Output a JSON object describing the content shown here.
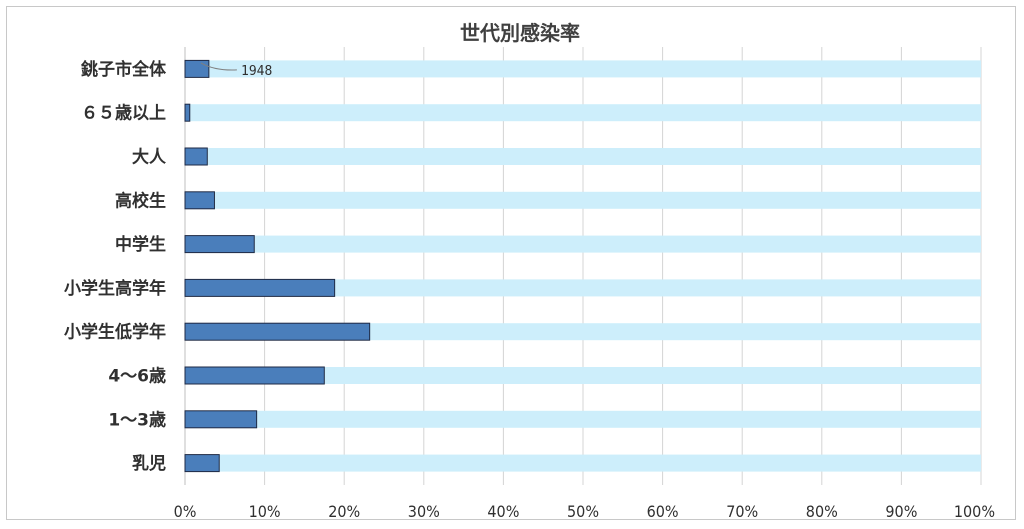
{
  "chart_data": {
    "type": "bar",
    "orientation": "horizontal",
    "title": "世代別感染率",
    "xlabel": "",
    "ylabel": "",
    "xlim": [
      0,
      100
    ],
    "ticks": [
      "0%",
      "10%",
      "20%",
      "30%",
      "40%",
      "50%",
      "60%",
      "70%",
      "80%",
      "90%",
      "100%"
    ],
    "categories": [
      "銚子市全体",
      "６５歳以上",
      "大人",
      "高校生",
      "中学生",
      "小学生高学年",
      "小学生低学年",
      "4～6歳",
      "1～3歳",
      "乳児"
    ],
    "series": [
      {
        "values": [
          3.0,
          0.6,
          2.8,
          3.7,
          8.7,
          18.8,
          23.2,
          17.5,
          9.0,
          4.3
        ],
        "color": "#4a7ebb"
      },
      {
        "values": [
          100,
          100,
          100,
          100,
          100,
          100,
          100,
          100,
          100,
          100
        ],
        "color": "#cdeefb"
      }
    ],
    "annotation": {
      "category": "銚子市全体",
      "text": "1948"
    },
    "grid": true,
    "legend": "none"
  }
}
